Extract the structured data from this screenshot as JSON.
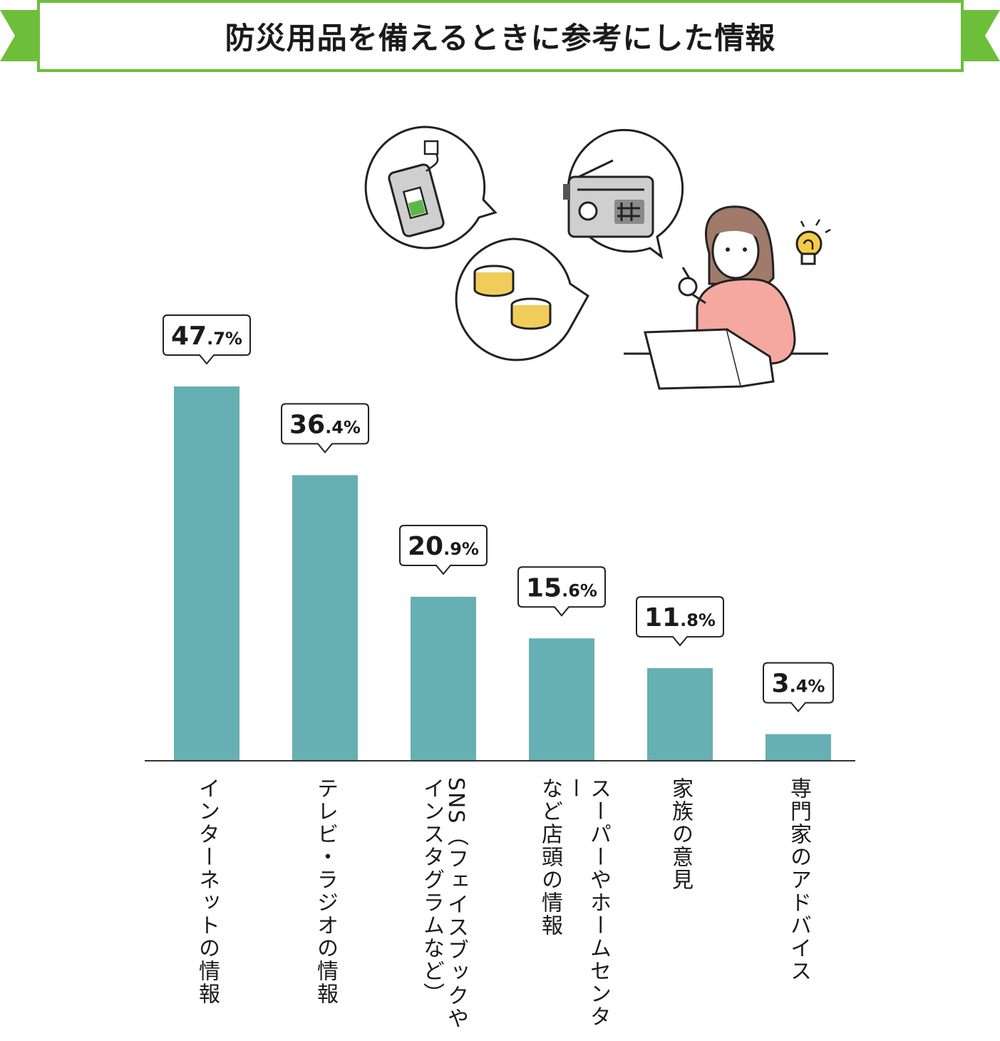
{
  "title": "防災用品を備えるときに参考にした情報",
  "colors": {
    "accent": "#6dbf3a",
    "bar": "#66afb2",
    "axis": "#333333"
  },
  "illustration": {
    "icons": [
      "power-bank-icon",
      "canned-food-icon",
      "radio-icon",
      "woman-with-laptop-icon",
      "lightbulb-icon"
    ]
  },
  "chart_data": {
    "type": "bar",
    "categories": [
      "インターネットの情報",
      "テレビ・ラジオの情報",
      "SNS（フェイスブックや\nインスタグラムなど）",
      "スーパーやホームセンター\nなど店頭の情報",
      "家族の意見",
      "専門家のアドバイス"
    ],
    "values": [
      47.7,
      36.4,
      20.9,
      15.6,
      11.8,
      3.4
    ],
    "value_labels": [
      {
        "int": "47",
        "dec": ".7%"
      },
      {
        "int": "36",
        "dec": ".4%"
      },
      {
        "int": "20",
        "dec": ".9%"
      },
      {
        "int": "15",
        "dec": ".6%"
      },
      {
        "int": "11",
        "dec": ".8%"
      },
      {
        "int": "3",
        "dec": ".4%"
      }
    ],
    "title": "",
    "xlabel": "",
    "ylabel": "",
    "grid": false,
    "legend": "none"
  }
}
